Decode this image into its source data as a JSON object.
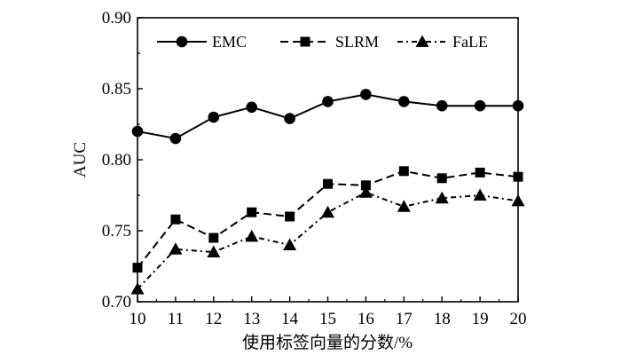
{
  "chart_data": {
    "type": "line",
    "title": "",
    "xlabel": "使用标签向量的分数/%",
    "ylabel": "AUC",
    "x": [
      10,
      11,
      12,
      13,
      14,
      15,
      16,
      17,
      18,
      19,
      20
    ],
    "xlim": [
      10,
      20
    ],
    "ylim": [
      0.7,
      0.9
    ],
    "x_ticks": [
      "10",
      "11",
      "12",
      "13",
      "14",
      "15",
      "16",
      "17",
      "18",
      "19",
      "20"
    ],
    "y_ticks": [
      "0.70",
      "0.75",
      "0.80",
      "0.85",
      "0.90"
    ],
    "grid": false,
    "legend_position": "top",
    "series": [
      {
        "name": "EMC",
        "marker": "circle",
        "line_style": "solid",
        "values": [
          0.82,
          0.815,
          0.83,
          0.837,
          0.829,
          0.841,
          0.846,
          0.841,
          0.838,
          0.838,
          0.838
        ]
      },
      {
        "name": "SLRM",
        "marker": "square",
        "line_style": "dashed",
        "values": [
          0.724,
          0.758,
          0.745,
          0.763,
          0.76,
          0.783,
          0.782,
          0.792,
          0.787,
          0.791,
          0.788
        ]
      },
      {
        "name": "FaLE",
        "marker": "triangle",
        "line_style": "dash-dot",
        "values": [
          0.709,
          0.737,
          0.735,
          0.746,
          0.74,
          0.763,
          0.777,
          0.767,
          0.773,
          0.775,
          0.771
        ]
      }
    ]
  }
}
